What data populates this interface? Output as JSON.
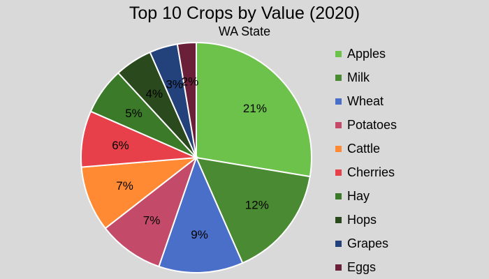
{
  "chart_data": {
    "type": "pie",
    "title": "Top 10 Crops by Value (2020)",
    "subtitle": "WA State",
    "legend_position": "right",
    "categories": [
      "Apples",
      "Milk",
      "Wheat",
      "Potatoes",
      "Cattle",
      "Cherries",
      "Hay",
      "Hops",
      "Grapes",
      "Eggs"
    ],
    "values": [
      21,
      12,
      9,
      7,
      7,
      6,
      5,
      4,
      3,
      2
    ],
    "data_labels": [
      "21%",
      "12%",
      "9%",
      "7%",
      "7%",
      "6%",
      "5%",
      "4%",
      "3%",
      "2%"
    ],
    "colors": [
      "#6cc24a",
      "#4a8a32",
      "#4a6fc8",
      "#c44a6a",
      "#ff8a33",
      "#e8404a",
      "#3a7a28",
      "#2a4a1e",
      "#23417a",
      "#6a2038"
    ]
  }
}
